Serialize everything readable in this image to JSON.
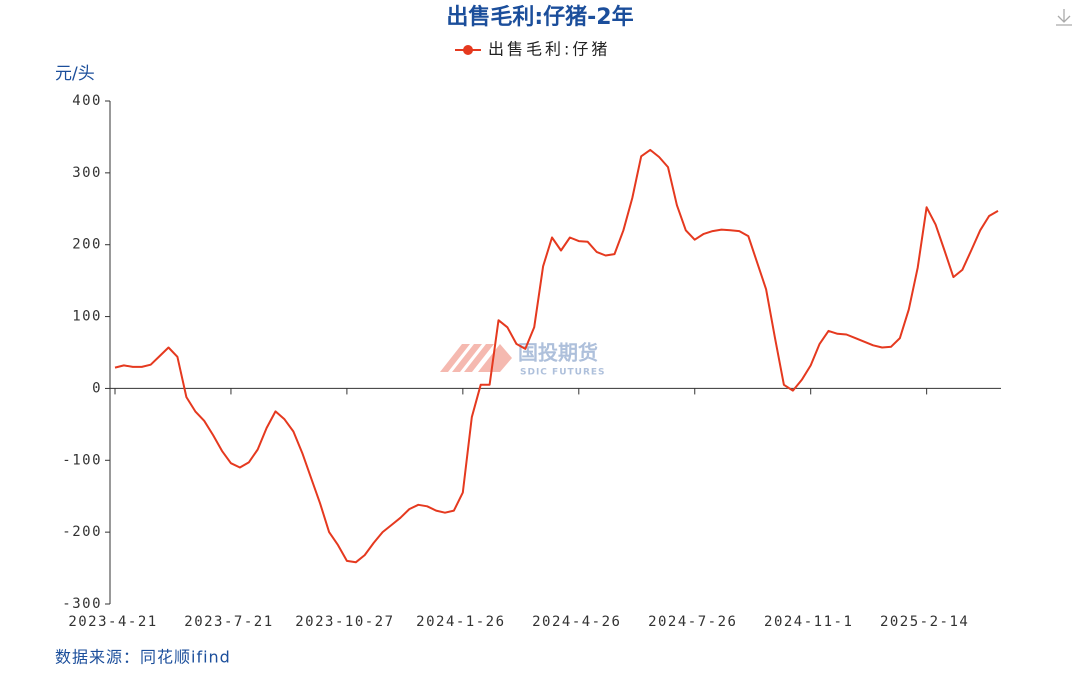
{
  "chart_data": {
    "type": "line",
    "title": "出售毛利:仔猪-2年",
    "y_label": "元/头",
    "source": "数据来源：同花顺ifind",
    "watermark": "国投期货",
    "watermark_sub": "SDIC FUTURES",
    "categories": [
      "2023-4-21",
      null,
      null,
      null,
      null,
      null,
      null,
      null,
      null,
      null,
      null,
      null,
      null,
      "2023-7-21",
      null,
      null,
      null,
      null,
      null,
      null,
      null,
      null,
      null,
      null,
      null,
      null,
      "2023-10-27",
      null,
      null,
      null,
      null,
      null,
      null,
      null,
      null,
      null,
      null,
      null,
      null,
      "2024-1-26",
      null,
      null,
      null,
      null,
      null,
      null,
      null,
      null,
      null,
      null,
      null,
      null,
      "2024-4-26",
      null,
      null,
      null,
      null,
      null,
      null,
      null,
      null,
      null,
      null,
      null,
      null,
      "2024-7-26",
      null,
      null,
      null,
      null,
      null,
      null,
      null,
      null,
      null,
      null,
      null,
      null,
      "2024-11-1",
      null,
      null,
      null,
      null,
      null,
      null,
      null,
      null,
      null,
      null,
      null,
      null,
      "2025-2-14",
      null,
      null,
      null,
      null,
      null,
      null,
      null,
      null
    ],
    "series": [
      {
        "name": "出售毛利:仔猪",
        "color": "#e5391f",
        "values": [
          29,
          32,
          30,
          30,
          33,
          45,
          57,
          44,
          -12,
          -32,
          -45,
          -65,
          -87,
          -104,
          -110,
          -103,
          -85,
          -55,
          -32,
          -43,
          -60,
          -90,
          -125,
          -160,
          -200,
          -218,
          -240,
          -242,
          -232,
          -215,
          -200,
          -190,
          -180,
          -168,
          -162,
          -164,
          -170,
          -173,
          -170,
          -145,
          -40,
          5,
          5,
          95,
          85,
          62,
          55,
          85,
          170,
          210,
          192,
          210,
          205,
          204,
          190,
          185,
          187,
          220,
          265,
          323,
          332,
          322,
          308,
          255,
          220,
          207,
          215,
          219,
          221,
          220,
          219,
          212,
          175,
          138,
          70,
          5,
          -3,
          12,
          32,
          62,
          80,
          76,
          75,
          70,
          65,
          60,
          57,
          58,
          70,
          110,
          168,
          252,
          228,
          192,
          155,
          165,
          192,
          220,
          240,
          247
        ]
      }
    ],
    "ylim": [
      -300,
      400
    ],
    "yticks": [
      -300,
      -200,
      -100,
      0,
      100,
      200,
      300,
      400
    ]
  }
}
